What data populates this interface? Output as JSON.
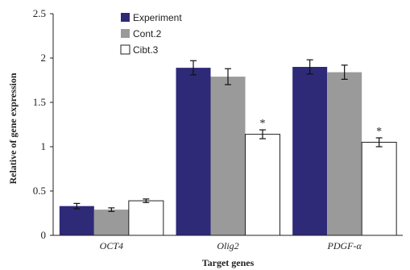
{
  "chart_data": {
    "type": "bar",
    "xlabel": "Target genes",
    "ylabel": "Relative of gene expression",
    "ylim": [
      0,
      2.5
    ],
    "yticks": [
      "0",
      "0.5",
      "1",
      "1.5",
      "2",
      "2.5"
    ],
    "categories": [
      "OCT4",
      "Olig2",
      "PDGF-α"
    ],
    "legend_position": "top-left",
    "series": [
      {
        "name": "Experiment",
        "color": "#2e2a78",
        "values": [
          0.33,
          1.89,
          1.9
        ],
        "errors": [
          0.03,
          0.08,
          0.08
        ]
      },
      {
        "name": "Cont.2",
        "color": "#9a9a9a",
        "values": [
          0.29,
          1.79,
          1.84
        ],
        "errors": [
          0.02,
          0.09,
          0.08
        ]
      },
      {
        "name": "Cibt.3",
        "color": "#ffffff",
        "values": [
          0.39,
          1.14,
          1.05
        ],
        "errors": [
          0.02,
          0.05,
          0.05
        ]
      }
    ],
    "annotations": [
      {
        "series": 2,
        "category": 1,
        "text": "*"
      },
      {
        "series": 2,
        "category": 2,
        "text": "*"
      }
    ]
  }
}
